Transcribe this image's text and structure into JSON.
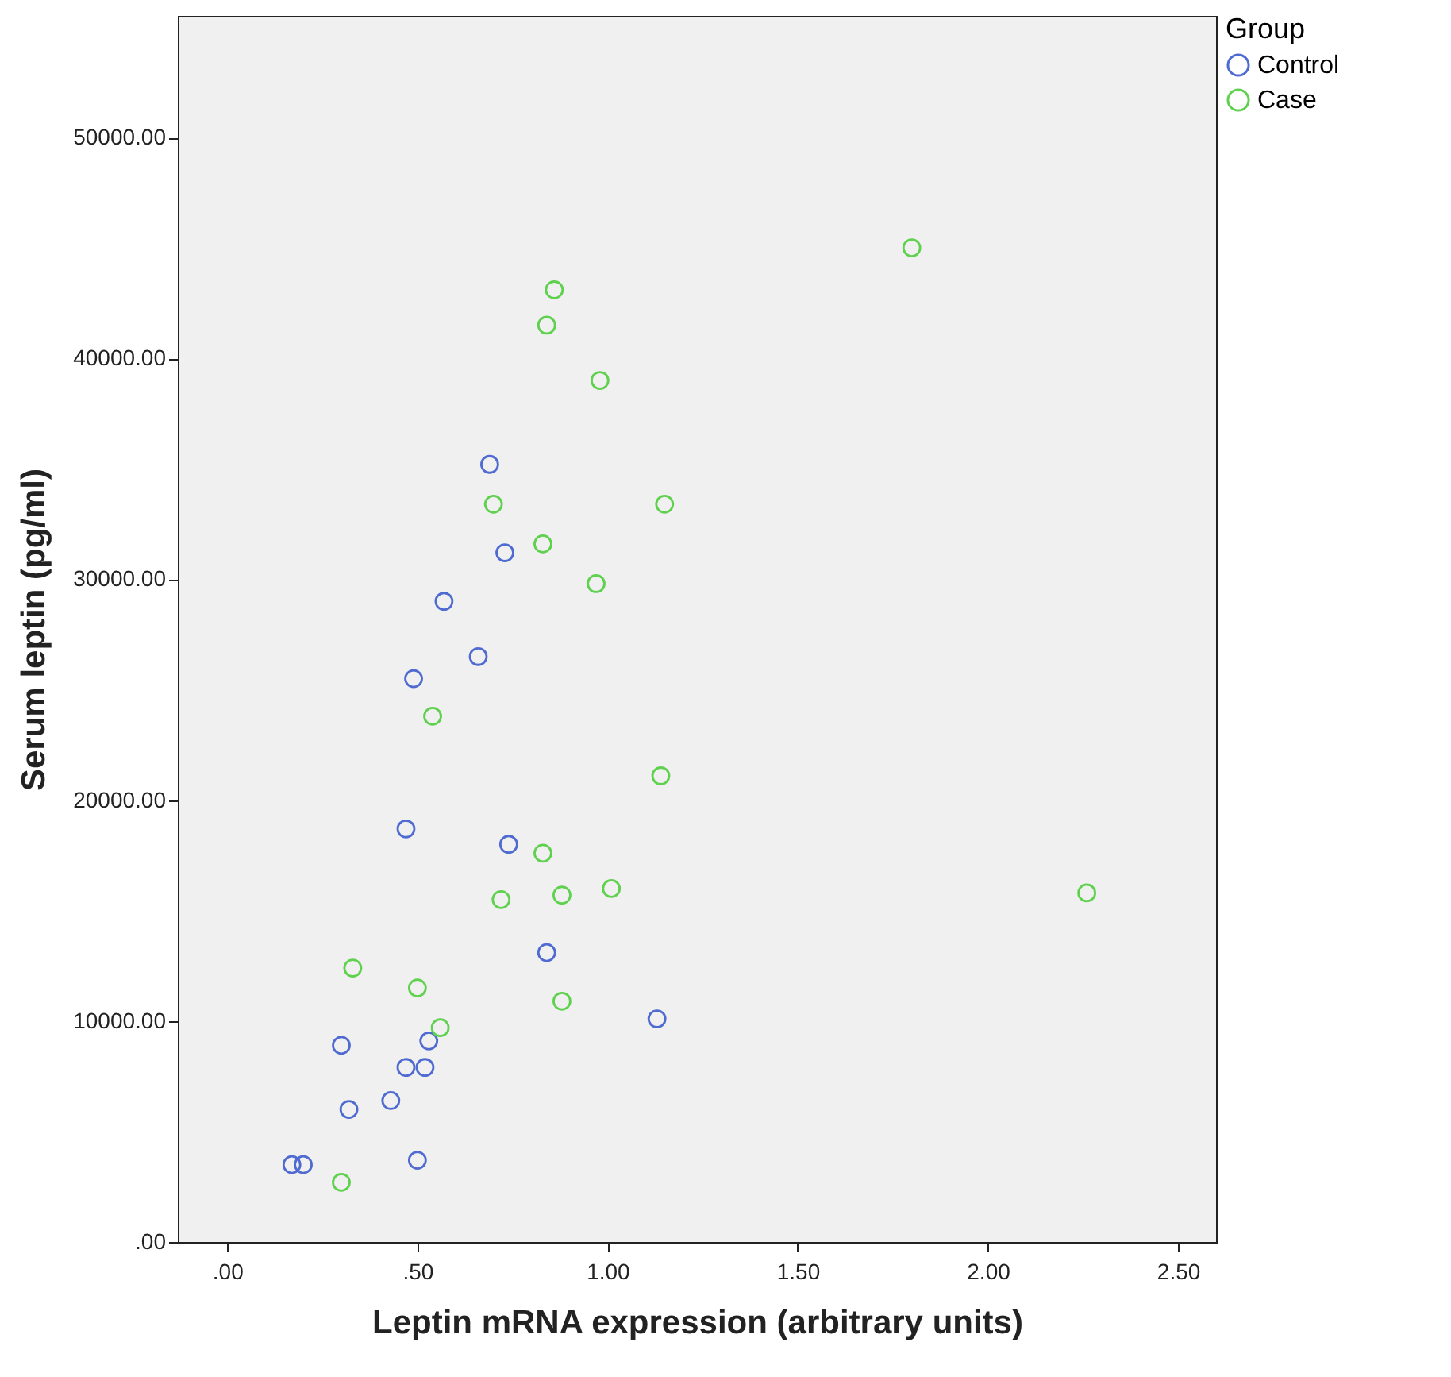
{
  "chart_data": {
    "type": "scatter",
    "xlabel": "Leptin mRNA expression (arbitrary units)",
    "ylabel": "Serum leptin (pg/ml)",
    "legend_title": "Group",
    "legend": "top right",
    "marker": "circle",
    "grid": false,
    "xlim": [
      -0.13,
      2.6
    ],
    "ylim": [
      0,
      55500
    ],
    "xticks": [
      {
        "value": 0,
        "label": ".00"
      },
      {
        "value": 0.5,
        "label": ".50"
      },
      {
        "value": 1,
        "label": "1.00"
      },
      {
        "value": 1.5,
        "label": "1.50"
      },
      {
        "value": 2,
        "label": "2.00"
      },
      {
        "value": 2.5,
        "label": "2.50"
      }
    ],
    "yticks": [
      {
        "value": 0,
        "label": ".00"
      },
      {
        "value": 10000,
        "label": "10000.00"
      },
      {
        "value": 20000,
        "label": "20000.00"
      },
      {
        "value": 30000,
        "label": "30000.00"
      },
      {
        "value": 40000,
        "label": "40000.00"
      },
      {
        "value": 50000,
        "label": "50000.00"
      }
    ],
    "series": [
      {
        "name": "Control",
        "color": "#4f6bd1",
        "x": [
          0.69,
          0.73,
          0.57,
          0.66,
          0.49,
          0.47,
          0.74,
          0.84,
          1.13,
          0.3,
          0.53,
          0.47,
          0.52,
          0.43,
          0.32,
          0.17,
          0.2,
          0.5
        ],
        "values": [
          35200,
          31200,
          29000,
          26500,
          25500,
          18700,
          18000,
          13100,
          10100,
          8900,
          9100,
          7900,
          7900,
          6400,
          6000,
          3500,
          3500,
          3700
        ]
      },
      {
        "name": "Case",
        "color": "#5fd14f",
        "x": [
          1.8,
          0.86,
          0.84,
          0.98,
          0.7,
          1.15,
          0.83,
          0.97,
          0.54,
          1.14,
          0.83,
          1.01,
          0.72,
          0.88,
          2.26,
          0.33,
          0.5,
          0.56,
          0.88,
          0.3
        ],
        "values": [
          45000,
          43100,
          41500,
          39000,
          33400,
          33400,
          31600,
          29800,
          23800,
          21100,
          17600,
          16000,
          15500,
          15700,
          15800,
          12400,
          11500,
          9700,
          10900,
          2700
        ]
      }
    ]
  }
}
